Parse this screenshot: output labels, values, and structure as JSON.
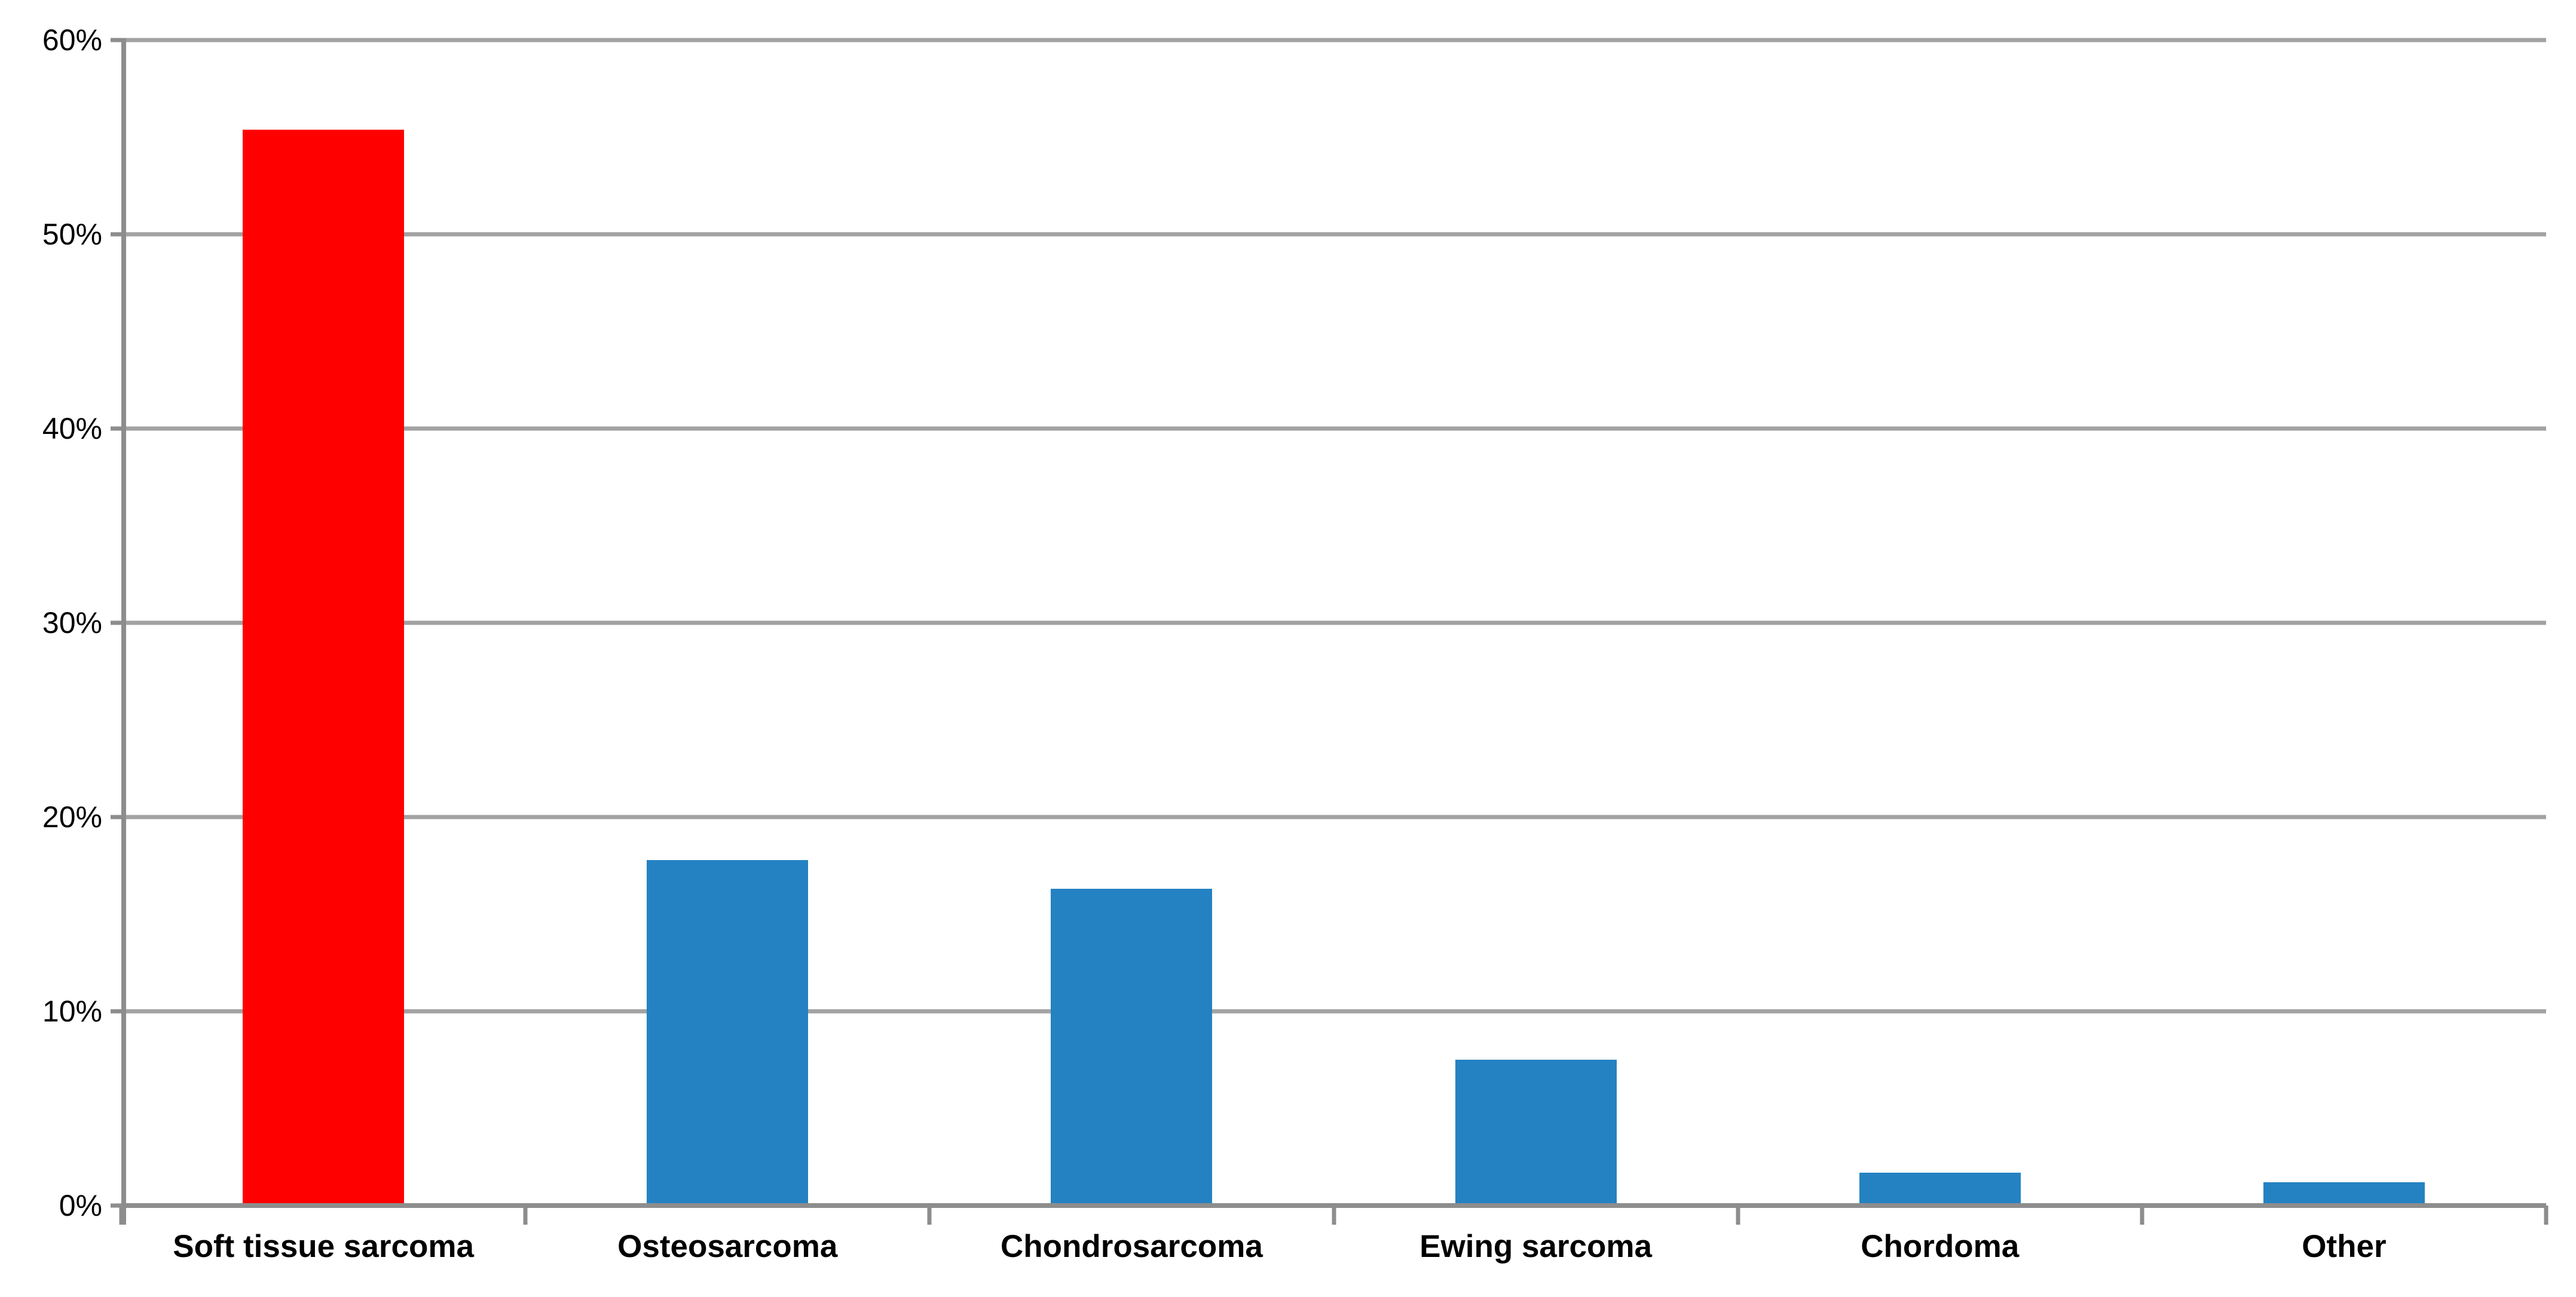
{
  "chart_data": {
    "type": "bar",
    "title": "",
    "xlabel": "",
    "ylabel": "",
    "categories": [
      "Soft tissue sarcoma",
      "Osteosarcoma",
      "Chondrosarcoma",
      "Ewing sarcoma",
      "Chordoma",
      "Other"
    ],
    "values": [
      55.4,
      17.8,
      16.3,
      7.5,
      1.7,
      1.2
    ],
    "value_unit": "%",
    "ylim": [
      0,
      60
    ],
    "ytick_interval": 10,
    "ytick_labels": [
      "0%",
      "10%",
      "20%",
      "30%",
      "40%",
      "50%",
      "60%"
    ],
    "grid": true,
    "legend_position": "none",
    "bar_colors": [
      "#ff0000",
      "#2482c2",
      "#2482c2",
      "#2482c2",
      "#2482c2",
      "#2482c2"
    ],
    "highlight_color": "#ff0000",
    "series_color": "#2482c2",
    "gridline_color": "#a2a2a2",
    "axis_color": "#8d8d8d",
    "label_color": "#000000"
  }
}
